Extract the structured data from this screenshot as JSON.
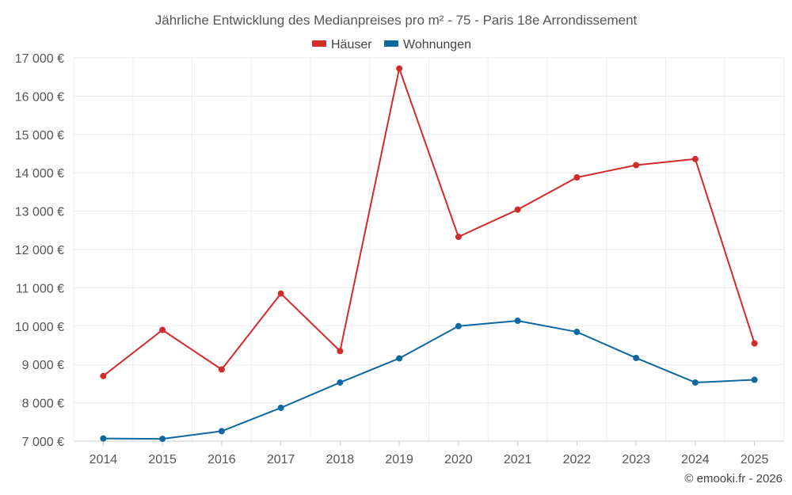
{
  "chart_data": {
    "type": "line",
    "title": "Jährliche Entwicklung des Medianpreises pro m² - 75 - Paris 18e Arrondissement",
    "categories": [
      "2014",
      "2015",
      "2016",
      "2017",
      "2018",
      "2019",
      "2020",
      "2021",
      "2022",
      "2023",
      "2024",
      "2025"
    ],
    "series": [
      {
        "name": "Häuser",
        "color": "#d32a2a",
        "values": [
          8700,
          9900,
          8870,
          10850,
          9350,
          16720,
          12330,
          13040,
          13880,
          14200,
          14360,
          9550
        ]
      },
      {
        "name": "Wohnungen",
        "color": "#0d67a1",
        "values": [
          7070,
          7060,
          7260,
          7870,
          8530,
          9160,
          10000,
          10140,
          9850,
          9170,
          8530,
          8600
        ]
      }
    ],
    "ylim": [
      7000,
      17000
    ],
    "yticks": [
      7000,
      8000,
      9000,
      10000,
      11000,
      12000,
      13000,
      14000,
      15000,
      16000,
      17000
    ],
    "ytick_labels": [
      "7 000 €",
      "8 000 €",
      "9 000 €",
      "10 000 €",
      "11 000 €",
      "12 000 €",
      "13 000 €",
      "14 000 €",
      "15 000 €",
      "16 000 €",
      "17 000 €"
    ],
    "xlabel": "",
    "ylabel": "",
    "legend": "top-center",
    "grid": true
  },
  "credit": "© emooki.fr - 2026"
}
